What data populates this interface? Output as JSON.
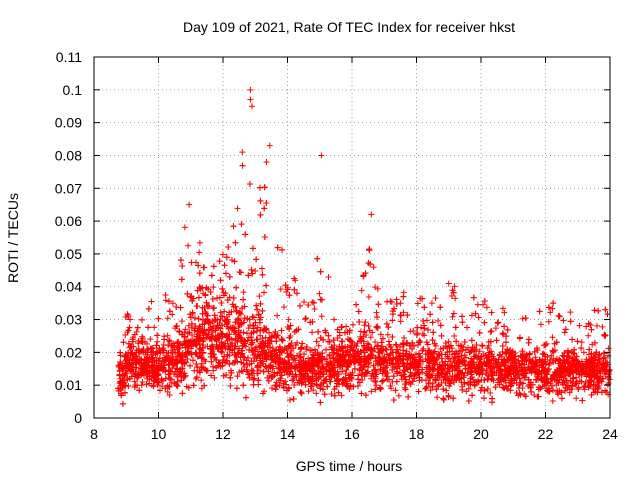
{
  "chart_data": {
    "type": "scatter",
    "title": "Day 109 of 2021, Rate Of TEC Index for receiver hkst",
    "xlabel": "GPS time / hours",
    "ylabel": "ROTI / TECUs",
    "xlim": [
      8,
      24
    ],
    "ylim": [
      0,
      0.11
    ],
    "xticks": [
      "8",
      "10",
      "12",
      "14",
      "16",
      "18",
      "20",
      "22",
      "24"
    ],
    "yticks": [
      "0",
      "0.01",
      "0.02",
      "0.03",
      "0.04",
      "0.05",
      "0.06",
      "0.07",
      "0.08",
      "0.09",
      "0.1",
      "0.11"
    ],
    "grid": true,
    "marker": "+",
    "color": "#ff0000",
    "data_range_x": [
      8.75,
      24.0
    ],
    "envelope": {
      "x": [
        8.75,
        9.0,
        9.5,
        10.0,
        10.5,
        10.9,
        11.0,
        11.2,
        11.5,
        12.0,
        12.3,
        12.5,
        12.7,
        12.8,
        13.0,
        13.3,
        13.5,
        13.8,
        14.0,
        14.5,
        15.0,
        15.1,
        15.5,
        16.0,
        16.5,
        16.6,
        16.8,
        17.0,
        17.5,
        18.0,
        18.5,
        19.0,
        19.5,
        20.0,
        20.5,
        21.0,
        21.5,
        22.0,
        22.5,
        23.0,
        23.5,
        24.0
      ],
      "y_max": [
        0.035,
        0.032,
        0.03,
        0.04,
        0.035,
        0.065,
        0.058,
        0.055,
        0.05,
        0.052,
        0.06,
        0.081,
        0.075,
        0.1,
        0.06,
        0.083,
        0.05,
        0.055,
        0.045,
        0.041,
        0.05,
        0.08,
        0.03,
        0.03,
        0.063,
        0.055,
        0.045,
        0.035,
        0.04,
        0.038,
        0.036,
        0.042,
        0.038,
        0.037,
        0.034,
        0.033,
        0.031,
        0.034,
        0.038,
        0.032,
        0.035,
        0.033
      ],
      "y_typical": [
        0.012,
        0.015,
        0.016,
        0.015,
        0.016,
        0.02,
        0.022,
        0.023,
        0.024,
        0.023,
        0.024,
        0.024,
        0.022,
        0.021,
        0.02,
        0.019,
        0.018,
        0.017,
        0.016,
        0.015,
        0.015,
        0.015,
        0.016,
        0.017,
        0.018,
        0.018,
        0.017,
        0.017,
        0.016,
        0.016,
        0.015,
        0.015,
        0.015,
        0.015,
        0.015,
        0.014,
        0.014,
        0.014,
        0.014,
        0.014,
        0.014,
        0.014
      ],
      "y_min": 0.003
    },
    "notable_points": [
      {
        "x": 12.85,
        "y": 0.1
      },
      {
        "x": 12.85,
        "y": 0.097
      },
      {
        "x": 12.9,
        "y": 0.095
      },
      {
        "x": 12.6,
        "y": 0.081
      },
      {
        "x": 15.05,
        "y": 0.08
      },
      {
        "x": 13.45,
        "y": 0.083
      },
      {
        "x": 13.35,
        "y": 0.078
      },
      {
        "x": 10.95,
        "y": 0.065
      },
      {
        "x": 16.6,
        "y": 0.062
      },
      {
        "x": 19.0,
        "y": 0.041
      }
    ]
  }
}
